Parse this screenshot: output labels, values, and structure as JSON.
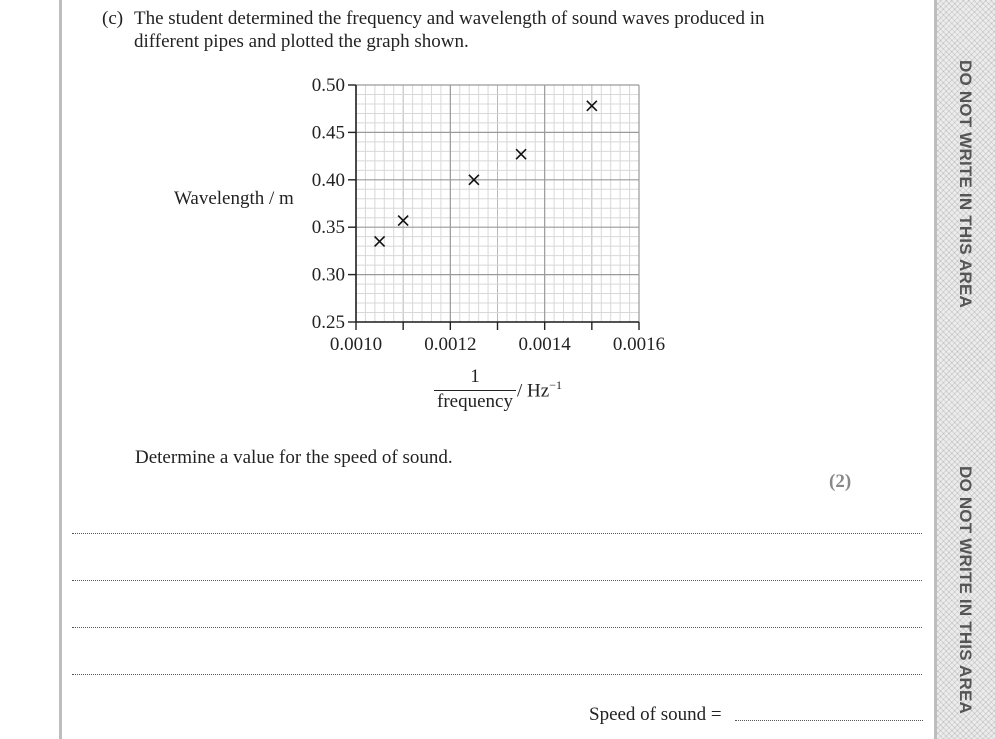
{
  "question": {
    "part": "(c)",
    "text_line1": "The student determined the frequency and wavelength of sound waves produced in",
    "text_line2": "different pipes and plotted the graph shown."
  },
  "chart_data": {
    "type": "scatter",
    "ylabel": "Wavelength / m",
    "xlabel_numerator": "1",
    "xlabel_denominator": "frequency",
    "xlabel_unit": "/ Hz",
    "xlabel_unit_exp": "−1",
    "xlim": [
      0.001,
      0.0016
    ],
    "ylim": [
      0.25,
      0.5
    ],
    "x_ticks": [
      "0.0010",
      "0.0012",
      "0.0014",
      "0.0016"
    ],
    "y_ticks": [
      "0.25",
      "0.30",
      "0.35",
      "0.40",
      "0.45",
      "0.50"
    ],
    "grid": true,
    "marker": "×",
    "points": [
      {
        "x": 0.00105,
        "y": 0.335
      },
      {
        "x": 0.0011,
        "y": 0.357
      },
      {
        "x": 0.00125,
        "y": 0.4
      },
      {
        "x": 0.00135,
        "y": 0.427
      },
      {
        "x": 0.0015,
        "y": 0.478
      }
    ]
  },
  "prompt": "Determine a value for the speed of sound.",
  "marks": "(2)",
  "answer_label": "Speed of sound =",
  "margin_notice": "DO NOT WRITE IN THIS AREA"
}
